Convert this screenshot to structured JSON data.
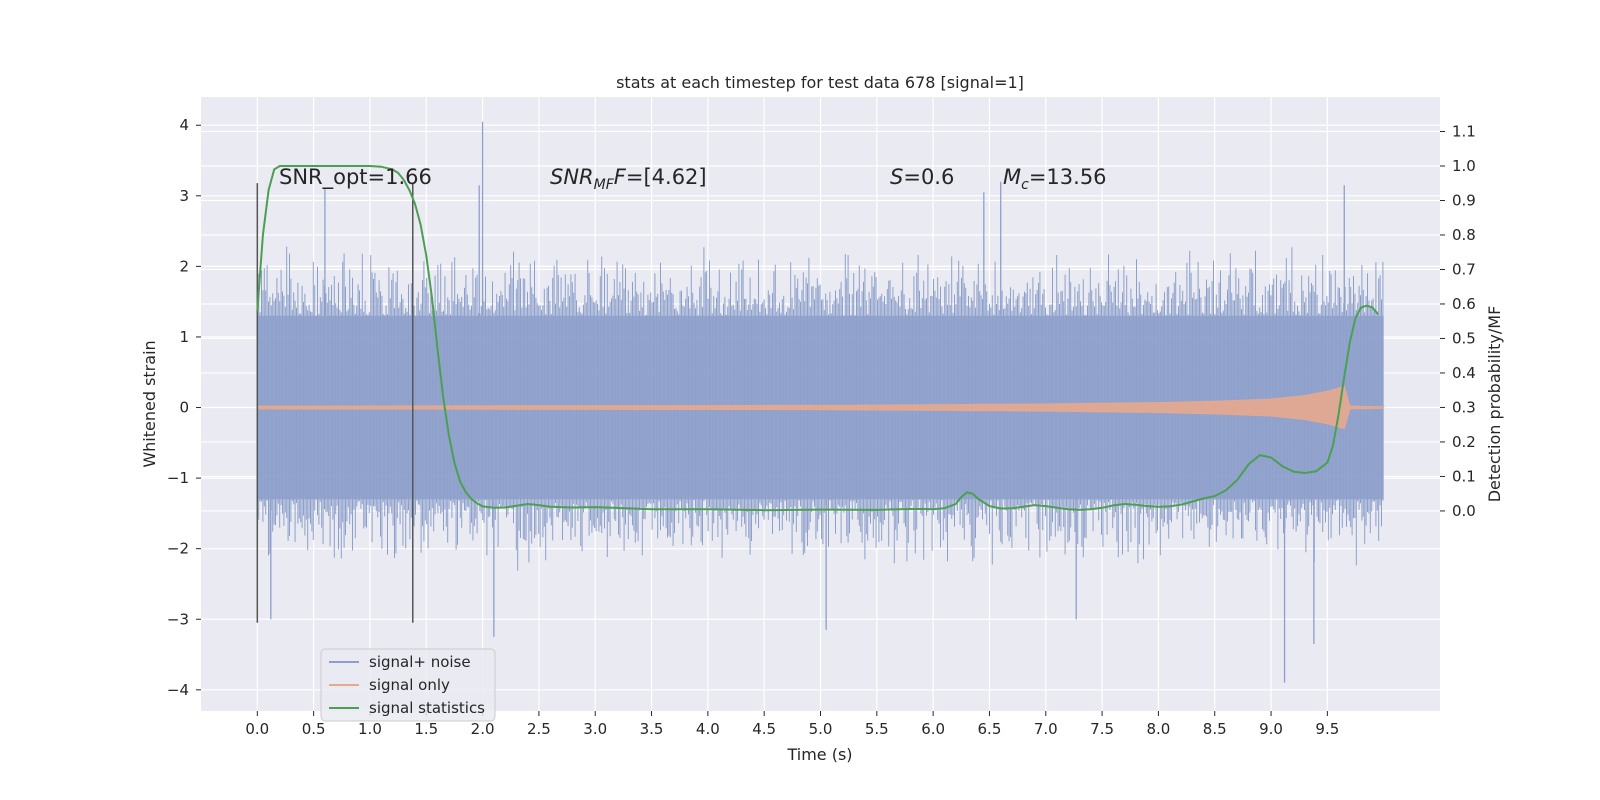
{
  "chart_data": {
    "type": "line",
    "title": "stats at each timestep for test data 678 [signal=1]",
    "xlabel": "Time (s)",
    "ylabel": "Whitened strain",
    "y2label": "Detection probability/MF",
    "xlim": [
      -0.5,
      10.5
    ],
    "ylim": [
      -4.3,
      4.4
    ],
    "y2lim": [
      -0.58,
      1.2
    ],
    "x_ticks": [
      "0.0",
      "0.5",
      "1.0",
      "1.5",
      "2.0",
      "2.5",
      "3.0",
      "3.5",
      "4.0",
      "4.5",
      "5.0",
      "5.5",
      "6.0",
      "6.5",
      "7.0",
      "7.5",
      "8.0",
      "8.5",
      "9.0",
      "9.5"
    ],
    "y_ticks": [
      "4",
      "3",
      "2",
      "1",
      "0",
      "−1",
      "−2",
      "−3",
      "−4"
    ],
    "y2_ticks": [
      "1.1",
      "1.0",
      "0.9",
      "0.8",
      "0.7",
      "0.6",
      "0.5",
      "0.4",
      "0.3",
      "0.2",
      "0.1",
      "0.0"
    ],
    "grid": true,
    "legend_placement": "lower-left",
    "annotations": {
      "snr_opt": "SNR_opt=1.66",
      "snr_mf_var": "SNR",
      "snr_mf_sub": "MF",
      "snr_mf_f": "F",
      "snr_mf_val": "=[4.62]",
      "s_var": "S",
      "s_val": "=0.6",
      "mc_var": "M",
      "mc_sub": "c",
      "mc_val": "=13.56"
    },
    "vertical_markers": [
      0.0,
      1.38
    ],
    "series": [
      {
        "name": "signal+ noise",
        "color": "#8da0cb",
        "axis": "left",
        "x_range": [
          0.0,
          10.0
        ],
        "envelope": {
          "core_upper": 1.3,
          "core_lower": -1.3,
          "typical_peak_upper": 2.2,
          "typical_peak_lower": -2.2
        },
        "spikes": [
          [
            2.0,
            4.05
          ],
          [
            1.97,
            3.15
          ],
          [
            0.6,
            3.1
          ],
          [
            9.65,
            3.15
          ],
          [
            6.6,
            3.2
          ],
          [
            6.45,
            3.05
          ],
          [
            5.05,
            -3.15
          ],
          [
            2.1,
            -3.25
          ],
          [
            9.12,
            -3.9
          ],
          [
            9.38,
            -3.35
          ],
          [
            7.27,
            -3.0
          ],
          [
            0.12,
            -3.0
          ]
        ]
      },
      {
        "name": "signal only",
        "color": "#e5a98e",
        "axis": "left",
        "x_range": [
          0.0,
          10.0
        ],
        "chirp_amplitude": {
          "x": [
            0.0,
            5.0,
            7.0,
            8.0,
            8.5,
            9.0,
            9.3,
            9.5,
            9.65,
            9.7,
            10.0
          ],
          "amp": [
            0.02,
            0.03,
            0.05,
            0.07,
            0.09,
            0.12,
            0.17,
            0.23,
            0.3,
            0.02,
            0.01
          ]
        }
      },
      {
        "name": "signal statistics",
        "color": "#4c9f52",
        "axis": "right",
        "x": [
          0.0,
          0.05,
          0.1,
          0.15,
          0.2,
          0.3,
          0.5,
          0.8,
          1.0,
          1.1,
          1.2,
          1.25,
          1.3,
          1.35,
          1.4,
          1.45,
          1.5,
          1.55,
          1.6,
          1.65,
          1.7,
          1.75,
          1.8,
          1.85,
          1.9,
          1.95,
          2.0,
          2.1,
          2.2,
          2.3,
          2.4,
          2.5,
          2.6,
          2.8,
          3.0,
          3.5,
          4.0,
          4.5,
          5.0,
          5.5,
          5.7,
          5.9,
          6.0,
          6.1,
          6.2,
          6.25,
          6.3,
          6.35,
          6.4,
          6.5,
          6.6,
          6.7,
          6.8,
          6.9,
          7.0,
          7.1,
          7.2,
          7.3,
          7.4,
          7.5,
          7.6,
          7.7,
          7.8,
          7.9,
          8.0,
          8.1,
          8.2,
          8.3,
          8.4,
          8.5,
          8.6,
          8.7,
          8.8,
          8.9,
          9.0,
          9.1,
          9.2,
          9.3,
          9.4,
          9.5,
          9.55,
          9.6,
          9.65,
          9.7,
          9.75,
          9.8,
          9.85,
          9.9,
          9.95
        ],
        "values": [
          0.58,
          0.8,
          0.93,
          0.99,
          1.0,
          1.0,
          1.0,
          1.0,
          1.0,
          0.998,
          0.99,
          0.98,
          0.96,
          0.93,
          0.89,
          0.83,
          0.74,
          0.62,
          0.47,
          0.33,
          0.22,
          0.14,
          0.085,
          0.055,
          0.035,
          0.022,
          0.013,
          0.009,
          0.01,
          0.015,
          0.02,
          0.017,
          0.012,
          0.01,
          0.011,
          0.005,
          0.005,
          0.002,
          0.004,
          0.003,
          0.005,
          0.006,
          0.005,
          0.008,
          0.02,
          0.04,
          0.054,
          0.05,
          0.035,
          0.014,
          0.007,
          0.008,
          0.012,
          0.017,
          0.014,
          0.009,
          0.005,
          0.003,
          0.005,
          0.009,
          0.016,
          0.02,
          0.018,
          0.014,
          0.012,
          0.013,
          0.018,
          0.027,
          0.036,
          0.043,
          0.06,
          0.09,
          0.135,
          0.162,
          0.155,
          0.13,
          0.114,
          0.11,
          0.115,
          0.14,
          0.19,
          0.28,
          0.39,
          0.49,
          0.56,
          0.59,
          0.595,
          0.59,
          0.57
        ]
      }
    ]
  }
}
